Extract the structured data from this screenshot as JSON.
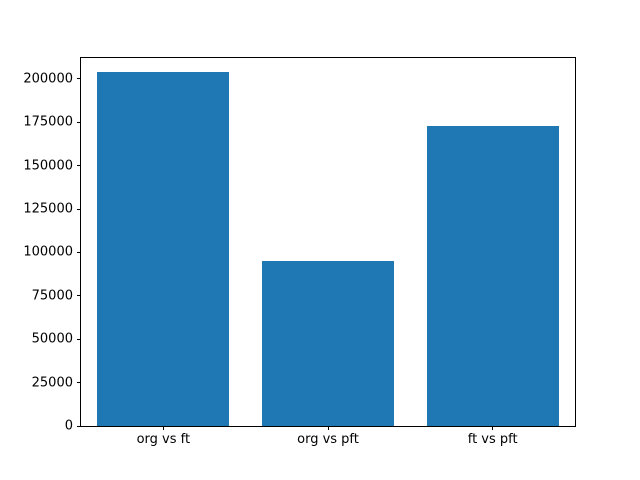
{
  "chart_data": {
    "type": "bar",
    "categories": [
      "org vs ft",
      "org vs pft",
      "ft vs pft"
    ],
    "values": [
      204000,
      95000,
      173000
    ],
    "title": "",
    "xlabel": "",
    "ylabel": "",
    "ylim": [
      0,
      212000
    ],
    "yticks": [
      0,
      25000,
      50000,
      75000,
      100000,
      125000,
      150000,
      175000,
      200000
    ],
    "bar_color": "#1f77b4",
    "axis_color": "#000000",
    "background_color": "#ffffff",
    "bar_width_fraction": 0.8,
    "grid": false,
    "legend": false
  }
}
